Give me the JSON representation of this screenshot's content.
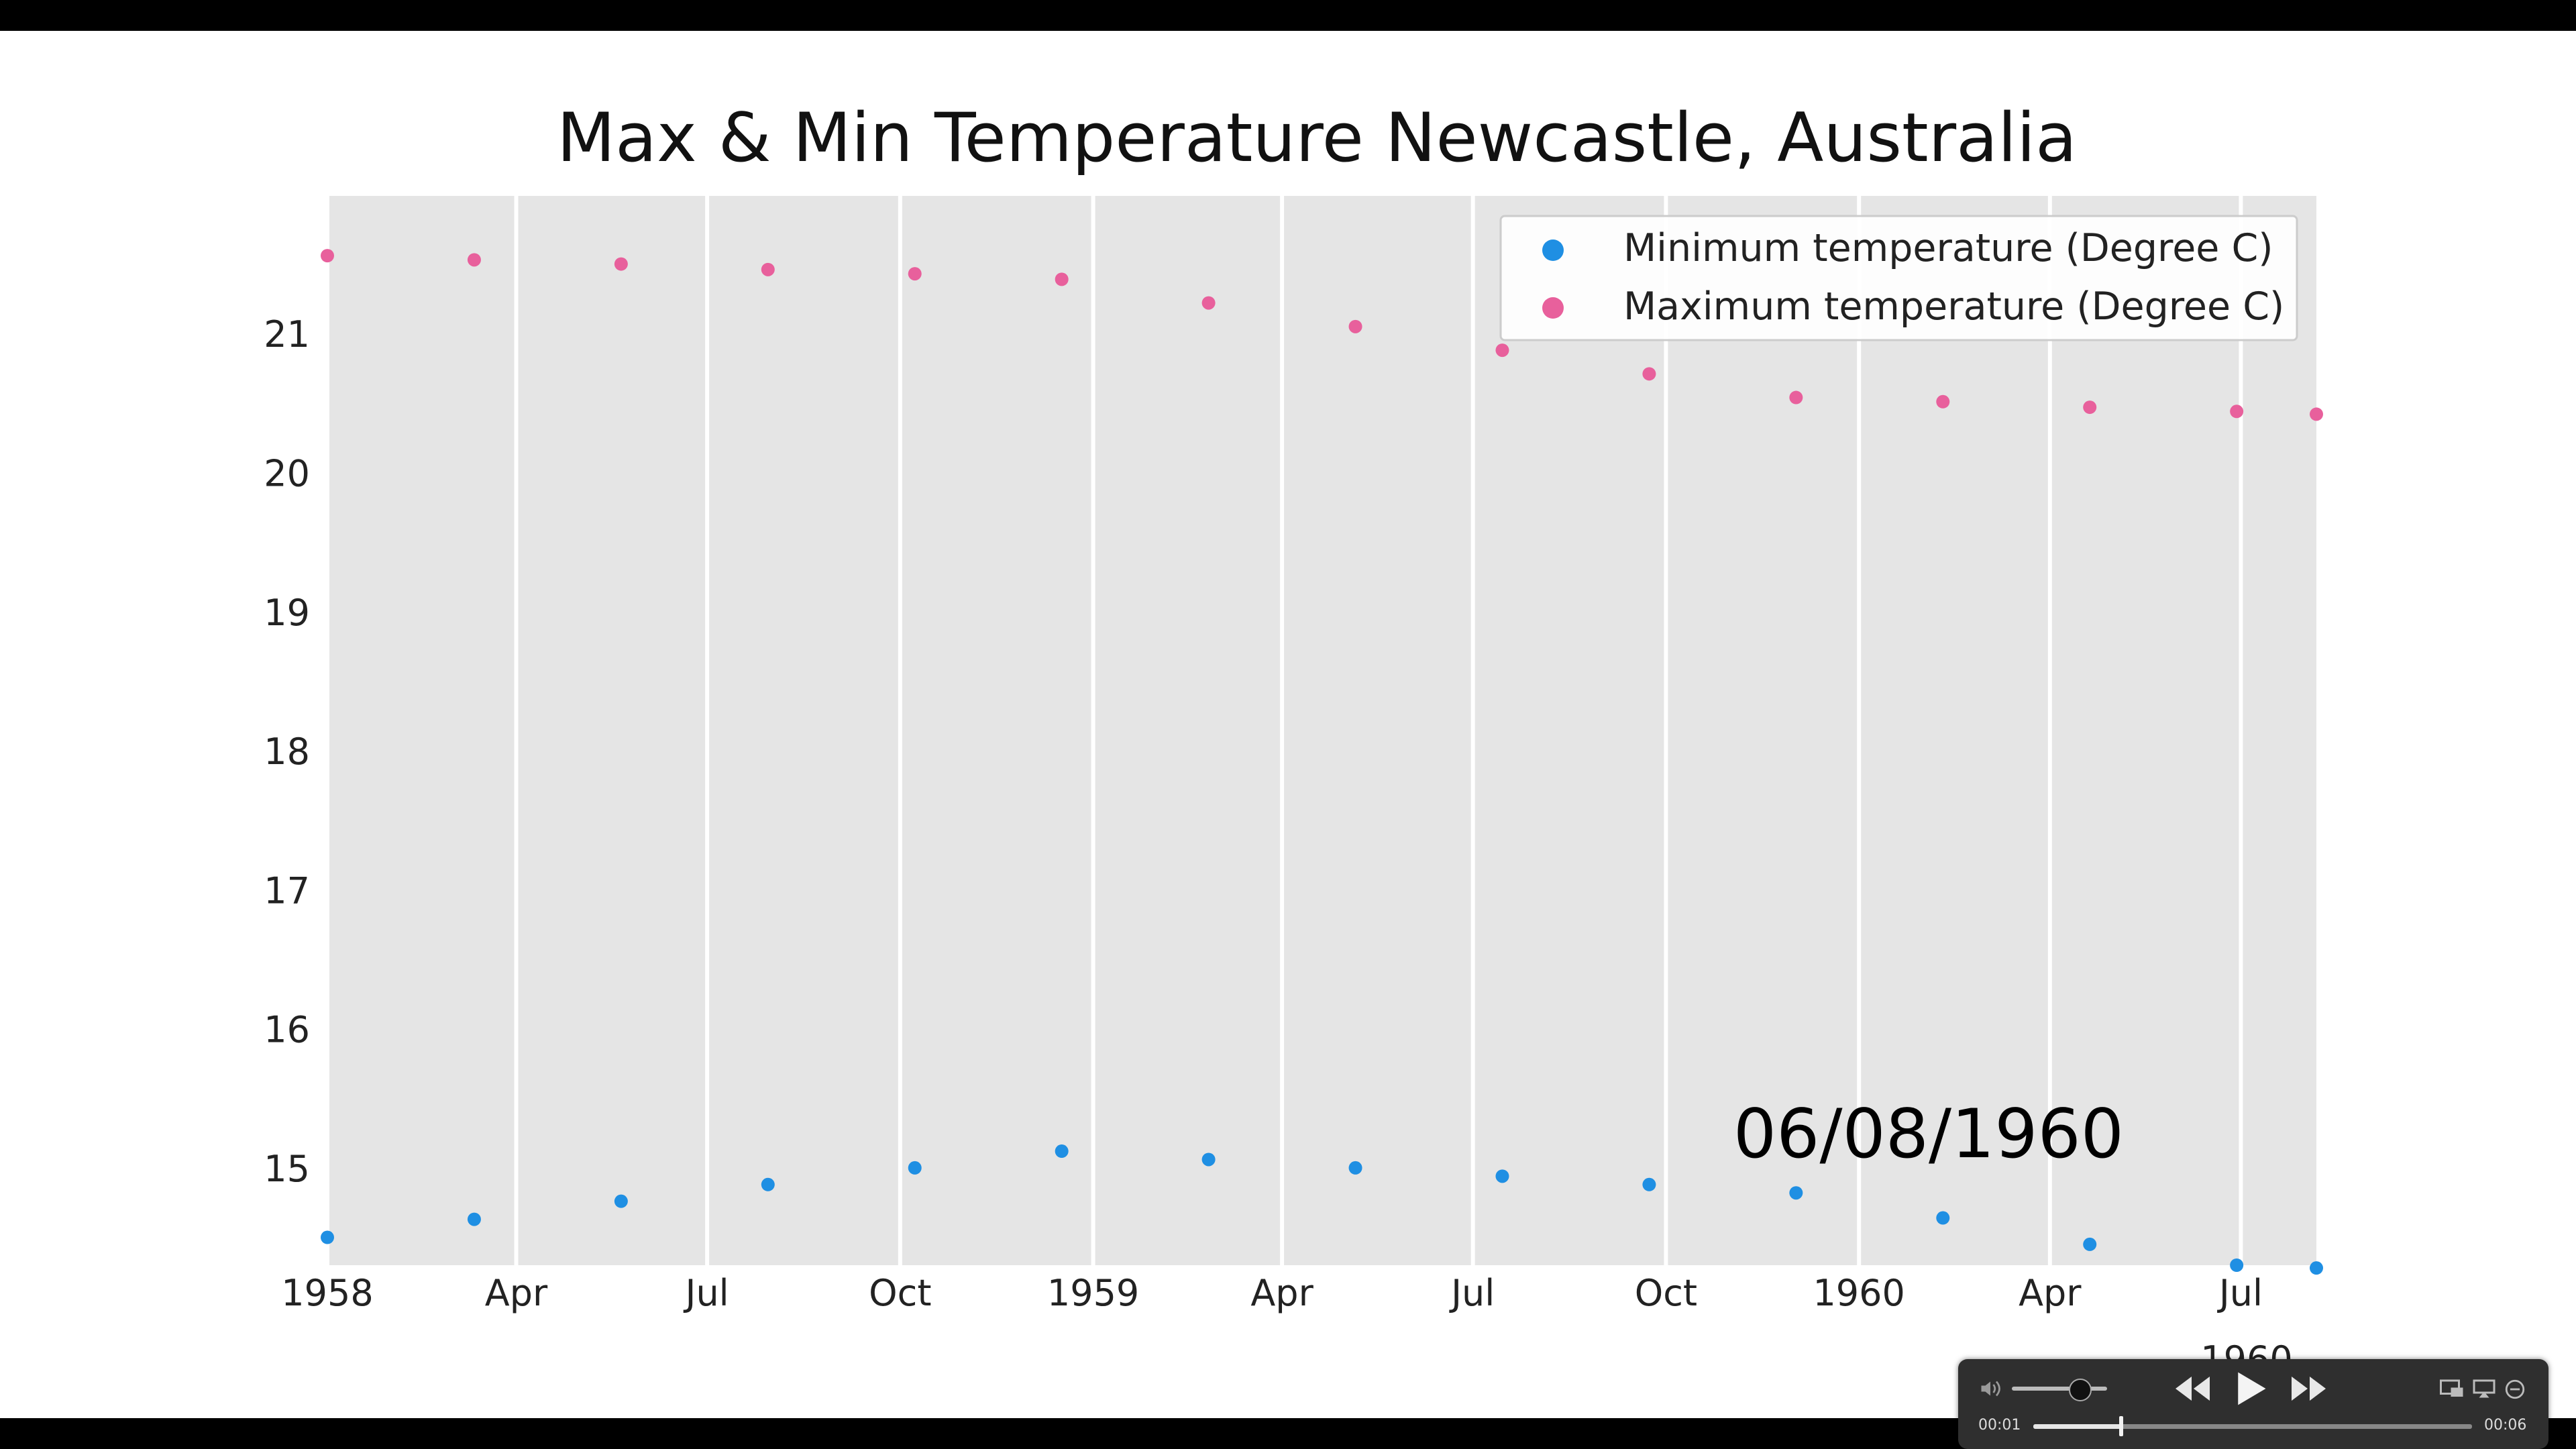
{
  "chart_data": {
    "type": "scatter",
    "title": "Max & Min Temperature Newcastle, Australia",
    "xlabel": "",
    "ylabel": "",
    "x_ticks": [
      "1958",
      "Apr",
      "Jul",
      "Oct",
      "1959",
      "Apr",
      "Jul",
      "Oct",
      "1960",
      "Apr",
      "Jul"
    ],
    "x_offset_label": "1960",
    "xlim": [
      "1958-01-01",
      "1960-08-06"
    ],
    "ylim": [
      14.3,
      21.99
    ],
    "y_ticks": [
      15,
      16,
      17,
      18,
      19,
      20,
      21
    ],
    "grid": "vertical",
    "legend": "top-right",
    "annotation": "06/08/1960",
    "colors": {
      "min": "#1f8fe3",
      "max": "#e8609c",
      "plot_bg": "#e5e5e5",
      "grid": "#ffffff"
    },
    "x": [
      "1958-01-01",
      "1958-03-12",
      "1958-05-21",
      "1958-07-30",
      "1958-10-08",
      "1958-12-17",
      "1959-02-25",
      "1959-05-06",
      "1959-07-15",
      "1959-09-23",
      "1959-12-02",
      "1960-02-10",
      "1960-04-20",
      "1960-06-29",
      "1960-08-06"
    ],
    "series": [
      {
        "name": "Minimum temperature (Degree C)",
        "values": [
          14.5,
          14.63,
          14.76,
          14.88,
          15.0,
          15.12,
          15.06,
          15.0,
          14.94,
          14.88,
          14.82,
          14.64,
          14.45,
          14.3,
          14.28
        ]
      },
      {
        "name": "Maximum temperature (Degree C)",
        "values": [
          21.56,
          21.53,
          21.5,
          21.46,
          21.43,
          21.39,
          21.22,
          21.05,
          20.88,
          20.71,
          20.54,
          20.51,
          20.47,
          20.44,
          20.42
        ]
      }
    ]
  },
  "player": {
    "time_current": "00:01",
    "time_total": "00:06",
    "progress": 0.2,
    "volume": 0.6
  }
}
